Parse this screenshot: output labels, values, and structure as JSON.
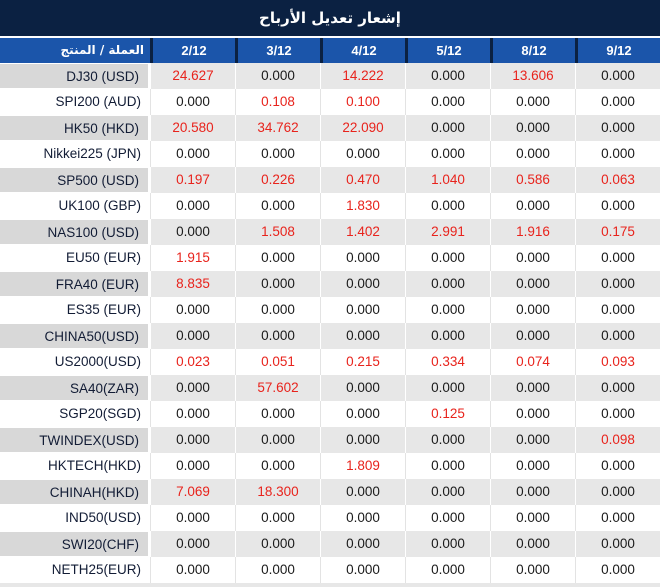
{
  "title": "إشعار تعديل الأرباح",
  "table": {
    "product_header": "العملة / المنتج",
    "date_headers": [
      "2/12",
      "3/12",
      "4/12",
      "5/12",
      "8/12",
      "9/12"
    ],
    "rows": [
      {
        "product": "DJ30 (USD)",
        "values": [
          "24.627",
          "0.000",
          "14.222",
          "0.000",
          "13.606",
          "0.000"
        ],
        "red": [
          true,
          false,
          true,
          false,
          true,
          false
        ]
      },
      {
        "product": "SPI200 (AUD)",
        "values": [
          "0.000",
          "0.108",
          "0.100",
          "0.000",
          "0.000",
          "0.000"
        ],
        "red": [
          false,
          true,
          true,
          false,
          false,
          false
        ]
      },
      {
        "product": "HK50 (HKD)",
        "values": [
          "20.580",
          "34.762",
          "22.090",
          "0.000",
          "0.000",
          "0.000"
        ],
        "red": [
          true,
          true,
          true,
          false,
          false,
          false
        ]
      },
      {
        "product": "Nikkei225 (JPN)",
        "values": [
          "0.000",
          "0.000",
          "0.000",
          "0.000",
          "0.000",
          "0.000"
        ],
        "red": [
          false,
          false,
          false,
          false,
          false,
          false
        ]
      },
      {
        "product": "SP500 (USD)",
        "values": [
          "0.197",
          "0.226",
          "0.470",
          "1.040",
          "0.586",
          "0.063"
        ],
        "red": [
          true,
          true,
          true,
          true,
          true,
          true
        ]
      },
      {
        "product": "UK100 (GBP)",
        "values": [
          "0.000",
          "0.000",
          "1.830",
          "0.000",
          "0.000",
          "0.000"
        ],
        "red": [
          false,
          false,
          true,
          false,
          false,
          false
        ]
      },
      {
        "product": "NAS100 (USD)",
        "values": [
          "0.000",
          "1.508",
          "1.402",
          "2.991",
          "1.916",
          "0.175"
        ],
        "red": [
          false,
          true,
          true,
          true,
          true,
          true
        ]
      },
      {
        "product": "EU50 (EUR)",
        "values": [
          "1.915",
          "0.000",
          "0.000",
          "0.000",
          "0.000",
          "0.000"
        ],
        "red": [
          true,
          false,
          false,
          false,
          false,
          false
        ]
      },
      {
        "product": "FRA40 (EUR)",
        "values": [
          "8.835",
          "0.000",
          "0.000",
          "0.000",
          "0.000",
          "0.000"
        ],
        "red": [
          true,
          false,
          false,
          false,
          false,
          false
        ]
      },
      {
        "product": "ES35 (EUR)",
        "values": [
          "0.000",
          "0.000",
          "0.000",
          "0.000",
          "0.000",
          "0.000"
        ],
        "red": [
          false,
          false,
          false,
          false,
          false,
          false
        ]
      },
      {
        "product": "CHINA50(USD)",
        "values": [
          "0.000",
          "0.000",
          "0.000",
          "0.000",
          "0.000",
          "0.000"
        ],
        "red": [
          false,
          false,
          false,
          false,
          false,
          false
        ]
      },
      {
        "product": "US2000(USD)",
        "values": [
          "0.023",
          "0.051",
          "0.215",
          "0.334",
          "0.074",
          "0.093"
        ],
        "red": [
          true,
          true,
          true,
          true,
          true,
          true
        ]
      },
      {
        "product": "SA40(ZAR)",
        "values": [
          "0.000",
          "57.602",
          "0.000",
          "0.000",
          "0.000",
          "0.000"
        ],
        "red": [
          false,
          true,
          false,
          false,
          false,
          false
        ]
      },
      {
        "product": "SGP20(SGD)",
        "values": [
          "0.000",
          "0.000",
          "0.000",
          "0.125",
          "0.000",
          "0.000"
        ],
        "red": [
          false,
          false,
          false,
          true,
          false,
          false
        ]
      },
      {
        "product": "TWINDEX(USD)",
        "values": [
          "0.000",
          "0.000",
          "0.000",
          "0.000",
          "0.000",
          "0.098"
        ],
        "red": [
          false,
          false,
          false,
          false,
          false,
          true
        ]
      },
      {
        "product": "HKTECH(HKD)",
        "values": [
          "0.000",
          "0.000",
          "1.809",
          "0.000",
          "0.000",
          "0.000"
        ],
        "red": [
          false,
          false,
          true,
          false,
          false,
          false
        ]
      },
      {
        "product": "CHINAH(HKD)",
        "values": [
          "7.069",
          "18.300",
          "0.000",
          "0.000",
          "0.000",
          "0.000"
        ],
        "red": [
          true,
          true,
          false,
          false,
          false,
          false
        ]
      },
      {
        "product": "IND50(USD)",
        "values": [
          "0.000",
          "0.000",
          "0.000",
          "0.000",
          "0.000",
          "0.000"
        ],
        "red": [
          false,
          false,
          false,
          false,
          false,
          false
        ]
      },
      {
        "product": "SWI20(CHF)",
        "values": [
          "0.000",
          "0.000",
          "0.000",
          "0.000",
          "0.000",
          "0.000"
        ],
        "red": [
          false,
          false,
          false,
          false,
          false,
          false
        ]
      },
      {
        "product": "NETH25(EUR)",
        "values": [
          "0.000",
          "0.000",
          "0.000",
          "0.000",
          "0.000",
          "0.000"
        ],
        "red": [
          false,
          false,
          false,
          false,
          false,
          false
        ]
      }
    ]
  },
  "colors": {
    "title_bar_bg": "#0b2142",
    "header_bg": "#1b55aa",
    "header_text": "#ffffff",
    "gray_row_bg": "#e7e7e7",
    "gray_name_cell_bg": "#d8d8d8",
    "value_text": "#1a1a1a",
    "highlight_red": "#e8231c"
  }
}
